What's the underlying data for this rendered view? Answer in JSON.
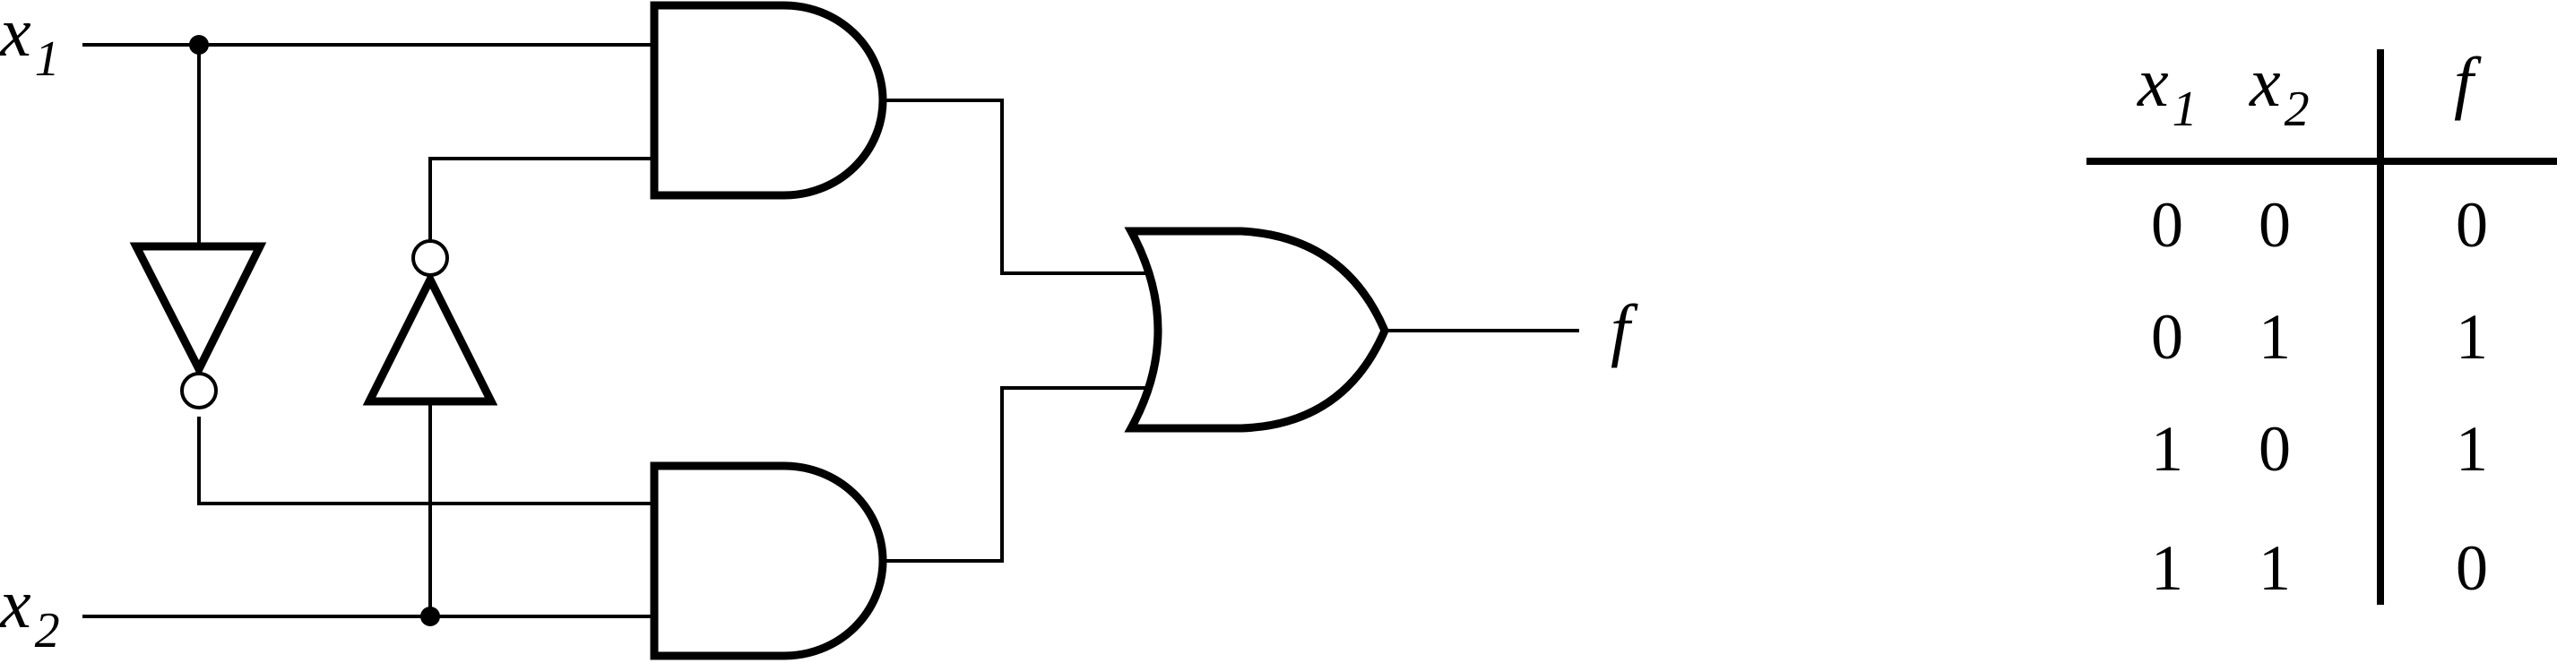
{
  "circuit": {
    "input_x1": {
      "name": "x",
      "subscript": "1"
    },
    "input_x2": {
      "name": "x",
      "subscript": "2"
    },
    "output": "f"
  },
  "truth_table": {
    "headers": [
      {
        "name": "x",
        "subscript": "1"
      },
      {
        "name": "x",
        "subscript": "2"
      },
      {
        "name": "f",
        "subscript": ""
      }
    ],
    "rows": [
      [
        "0",
        "0",
        "0"
      ],
      [
        "0",
        "1",
        "1"
      ],
      [
        "1",
        "0",
        "1"
      ],
      [
        "1",
        "1",
        "0"
      ]
    ]
  }
}
